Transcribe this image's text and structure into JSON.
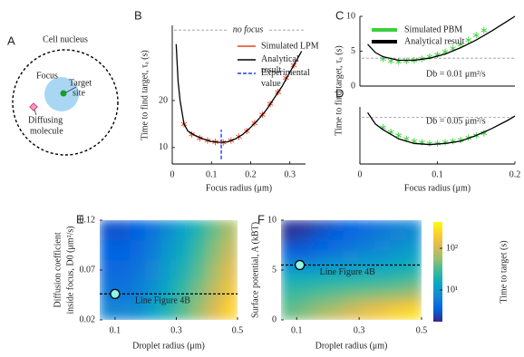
{
  "panel_labels": [
    "A",
    "B",
    "C",
    "D",
    "E",
    "F"
  ],
  "diagram": {
    "title": "Cell nucleus",
    "focus": "Focus",
    "target": [
      "Target",
      "site"
    ],
    "molecule": [
      "Diffusing",
      "molecule"
    ]
  },
  "chart_data": [
    {
      "type": "line",
      "xlabel": "Focus radius (μm)",
      "ylabel": "Time to find target, τₐ (s)",
      "xlim": [
        0,
        0.34
      ],
      "xticks": [
        0,
        0.1,
        0.2,
        0.3
      ],
      "ylim": [
        6.5,
        36
      ],
      "yticks": [
        10,
        20
      ],
      "reference": {
        "y": 35,
        "label": "no focus"
      },
      "legend": "upper right",
      "series": [
        {
          "name": "Simulated LPM",
          "color": "#e8431c",
          "style": "markers",
          "x": [
            0.03,
            0.05,
            0.07,
            0.09,
            0.11,
            0.13,
            0.15,
            0.17,
            0.19,
            0.21,
            0.23,
            0.25,
            0.27,
            0.29,
            0.31
          ],
          "values": [
            15,
            12.8,
            12,
            11.5,
            11.2,
            11.1,
            11.5,
            12.3,
            13.5,
            15.2,
            17,
            19.3,
            21.8,
            24.8,
            27.5
          ]
        },
        {
          "name": "Analytical result",
          "color": "#000000",
          "style": "line",
          "x": [
            0.01,
            0.015,
            0.02,
            0.03,
            0.04,
            0.06,
            0.08,
            0.1,
            0.12,
            0.14,
            0.16,
            0.18,
            0.2,
            0.22,
            0.24,
            0.26,
            0.28,
            0.3,
            0.32,
            0.33
          ],
          "values": [
            32,
            24,
            20,
            15,
            13.5,
            12.5,
            11.8,
            11.3,
            11.1,
            11.2,
            11.8,
            12.8,
            14.3,
            16,
            18,
            20.5,
            23,
            26,
            29,
            30.5
          ]
        },
        {
          "name": "Experimental value",
          "color": "#1f3ff0",
          "style": "dashed",
          "x": [
            0.125,
            0.125
          ],
          "values": [
            7.5,
            13.8
          ]
        }
      ]
    },
    {
      "type": "line",
      "ylabel": "Time to find target, τₐ (s)",
      "xlim": [
        0,
        0.2
      ],
      "ylim": [
        0,
        10
      ],
      "yticks": [
        0,
        5,
        10
      ],
      "reference": {
        "y": 4
      },
      "legend": "upper left",
      "annotation": "Db = 0.01 μm²/s",
      "series": [
        {
          "name": "Simulated PBM",
          "color": "#3ccf3c",
          "style": "markers",
          "x": [
            0.03,
            0.04,
            0.05,
            0.06,
            0.07,
            0.08,
            0.09,
            0.1,
            0.11,
            0.12,
            0.13,
            0.14,
            0.15,
            0.16
          ],
          "values": [
            3.9,
            3.6,
            3.5,
            3.6,
            3.7,
            3.9,
            4.2,
            4.5,
            4.9,
            5.4,
            6,
            6.6,
            7.3,
            8
          ]
        },
        {
          "name": "Analytical result",
          "color": "#000000",
          "style": "line",
          "x": [
            0.01,
            0.02,
            0.03,
            0.05,
            0.07,
            0.09,
            0.11,
            0.13,
            0.15,
            0.17,
            0.19,
            0.2
          ],
          "values": [
            6,
            4.8,
            4.2,
            3.7,
            3.7,
            4,
            4.6,
            5.5,
            6.6,
            7.9,
            9.3,
            10
          ]
        }
      ]
    },
    {
      "type": "line",
      "xlabel": "Focus radius (μm)",
      "xlim": [
        0,
        0.2
      ],
      "xticks": [
        0,
        0.1,
        0.2
      ],
      "ylim": [
        0,
        5
      ],
      "reference": {
        "y": 4.1
      },
      "annotation": "Db = 0.05 μm²/s",
      "series": [
        {
          "color": "#3ccf3c",
          "style": "markers",
          "x": [
            0.03,
            0.04,
            0.05,
            0.06,
            0.07,
            0.08,
            0.09,
            0.1,
            0.11,
            0.12,
            0.13,
            0.14,
            0.15,
            0.16
          ],
          "values": [
            3.2,
            2.8,
            2.5,
            2.2,
            2,
            1.9,
            1.8,
            1.8,
            1.9,
            2,
            2.1,
            2.3,
            2.5,
            2.7
          ]
        },
        {
          "color": "#000000",
          "style": "line",
          "x": [
            0.01,
            0.02,
            0.03,
            0.05,
            0.07,
            0.09,
            0.11,
            0.13,
            0.15,
            0.17,
            0.19,
            0.2
          ],
          "values": [
            4.5,
            3.5,
            3,
            2.2,
            1.8,
            1.7,
            1.8,
            2,
            2.5,
            3.1,
            3.8,
            4.2
          ]
        }
      ]
    },
    {
      "type": "heatmap",
      "xlabel": "Droplet radius (μm)",
      "ylabel": [
        "Diffusion coefficient",
        "inside focus, D0 (μm²/s)"
      ],
      "xlim": [
        0.05,
        0.5
      ],
      "xticks": [
        0.1,
        0.3,
        0.5
      ],
      "ylim": [
        0.02,
        0.12
      ],
      "yticks": [
        0.02,
        0.07,
        0.12
      ],
      "zlim": [
        1.74,
        427
      ],
      "zlog": true,
      "colormap": [
        "#352a87",
        "#0363e1",
        "#1485d4",
        "#06a7c6",
        "#38b99e",
        "#92bf73",
        "#d9ba56",
        "#fcce2e",
        "#f9fb0e"
      ],
      "x": [
        0.075,
        0.125,
        0.175,
        0.225,
        0.275,
        0.325,
        0.375,
        0.425,
        0.475
      ],
      "y": [
        0.03,
        0.05,
        0.07,
        0.09,
        0.11
      ],
      "z": [
        [
          7,
          7,
          8,
          12,
          20,
          35,
          60,
          110,
          220
        ],
        [
          5,
          5,
          6,
          9,
          15,
          26,
          45,
          85,
          160
        ],
        [
          4,
          4,
          5,
          7,
          12,
          20,
          35,
          65,
          120
        ],
        [
          3.5,
          3.5,
          4,
          6,
          10,
          16,
          28,
          50,
          90
        ],
        [
          3,
          3,
          3.5,
          5,
          8,
          13,
          22,
          40,
          70
        ]
      ],
      "marker": {
        "x": 0.1,
        "y": 0.046,
        "label": "Line Figure 4B",
        "color": "#8ff5e4"
      }
    },
    {
      "type": "heatmap",
      "xlabel": "Droplet radius (μm)",
      "ylabel": [
        "Surface potential, A (kBT)"
      ],
      "xlim": [
        0.05,
        0.5
      ],
      "xticks": [
        0.1,
        0.3,
        0.5
      ],
      "ylim": [
        0,
        10
      ],
      "yticks": [
        0,
        5,
        10
      ],
      "zlim": [
        1.74,
        427
      ],
      "zlog": true,
      "colormap": [
        "#352a87",
        "#0363e1",
        "#1485d4",
        "#06a7c6",
        "#38b99e",
        "#92bf73",
        "#d9ba56",
        "#fcce2e",
        "#f9fb0e"
      ],
      "x": [
        0.075,
        0.125,
        0.175,
        0.225,
        0.275,
        0.325,
        0.375,
        0.425,
        0.475
      ],
      "y": [
        0.5,
        1.5,
        2.5,
        3.5,
        4.5,
        5.5,
        6.5,
        7.5,
        8.5,
        9.5
      ],
      "z": [
        [
          40,
          50,
          70,
          90,
          120,
          160,
          200,
          250,
          300
        ],
        [
          35,
          40,
          50,
          60,
          80,
          100,
          120,
          150,
          180
        ],
        [
          28,
          30,
          35,
          40,
          45,
          50,
          55,
          60,
          70
        ],
        [
          22,
          22,
          24,
          26,
          28,
          30,
          32,
          35,
          40
        ],
        [
          15,
          15,
          16,
          17,
          18,
          19,
          20,
          22,
          25
        ],
        [
          8,
          8,
          9,
          10,
          11,
          12,
          13,
          15,
          17
        ],
        [
          4,
          4,
          5,
          6,
          7,
          8,
          9,
          11,
          13
        ],
        [
          3,
          3,
          3.5,
          4,
          5,
          6,
          7,
          8,
          10
        ],
        [
          2,
          2.5,
          3,
          3.5,
          4,
          5,
          6,
          7,
          8
        ],
        [
          2,
          2,
          2.5,
          3,
          3.5,
          4,
          5,
          6,
          7
        ]
      ],
      "marker": {
        "x": 0.11,
        "y": 5.5,
        "label": "Line Figure 4B",
        "color": "#8ff5e4"
      },
      "colorbar": {
        "label": "Time to target (s)",
        "ticks": [
          {
            "value": 10,
            "label": "10¹"
          },
          {
            "value": 100,
            "label": "10²"
          }
        ]
      }
    }
  ]
}
